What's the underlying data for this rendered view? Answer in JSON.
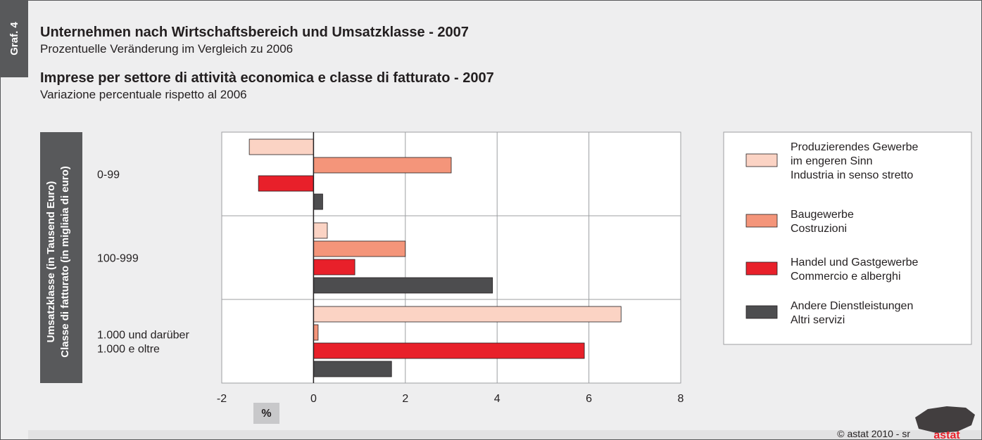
{
  "chart_data": {
    "type": "barh",
    "tab_label": "Graf. 4",
    "title_de": "Unternehmen nach Wirtschaftsbereich und Umsatzklasse - 2007",
    "subtitle_de": "Prozentuelle Veränderung im Vergleich zu 2006",
    "title_it": "Imprese per settore di attività economica e classe di fatturato - 2007",
    "subtitle_it": "Variazione percentuale rispetto al 2006",
    "y_label": "Umsatzklasse (in Tausend Euro)\nClasse di fatturato (in migliaia di euro)",
    "x_label": "%",
    "categories": [
      "0-99",
      "100-999",
      "1.000 und darüber\n1.000 e oltre"
    ],
    "series": [
      {
        "name": "Produzierendes Gewerbe\nim engeren Sinn\nIndustria in senso stretto",
        "color": "#fbd3c4",
        "values": [
          -1.4,
          0.3,
          6.7
        ]
      },
      {
        "name": "Baugewerbe\nCostruzioni",
        "color": "#f4957a",
        "values": [
          3.0,
          2.0,
          0.1
        ]
      },
      {
        "name": "Handel und Gastgewerbe\nCommercio e alberghi",
        "color": "#e8202a",
        "values": [
          -1.2,
          0.9,
          5.9
        ]
      },
      {
        "name": "Andere Dienstleistungen\nAltri servizi",
        "color": "#4d4d4f",
        "values": [
          0.2,
          3.9,
          1.7
        ]
      }
    ],
    "xlim": [
      -2,
      8
    ],
    "xticks": [
      -2,
      0,
      2,
      4,
      6,
      8
    ],
    "grid": true,
    "legend": "right",
    "footer": "© astat 2010 - sr",
    "logo": "astat"
  }
}
